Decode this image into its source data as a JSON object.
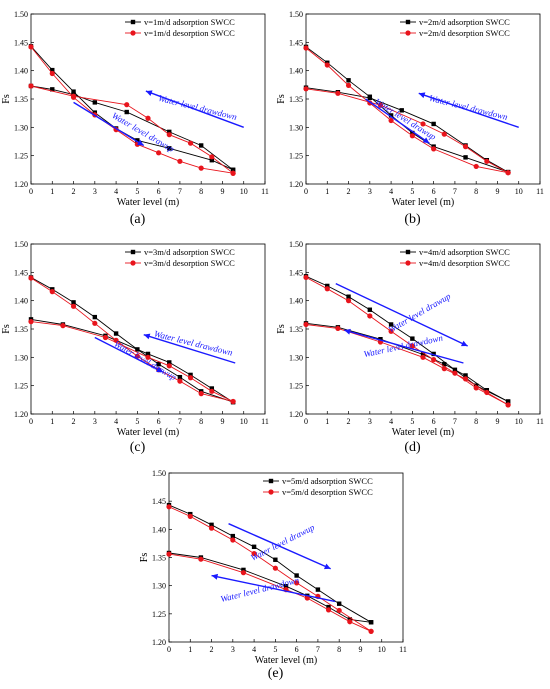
{
  "chart_data": [
    {
      "type": "line",
      "caption": "(a)",
      "xlabel": "Water level (m)",
      "ylabel": "Fs",
      "xlim": [
        0,
        11
      ],
      "ylim": [
        1.2,
        1.5
      ],
      "xticks": [
        0,
        1,
        2,
        3,
        4,
        5,
        6,
        7,
        8,
        9,
        10,
        11
      ],
      "yticks": [
        "1.20",
        "1.25",
        "1.30",
        "1.35",
        "1.40",
        "1.45",
        "1.50"
      ],
      "legend_position": "top-right",
      "colors": {
        "adsorption": "#000000",
        "desorption": "#e8141c",
        "annotation": "#1a1aff"
      },
      "series": [
        {
          "name": "v=1m/d adsorption SWCC",
          "group": "adsorption",
          "marker": "square",
          "branches": [
            {
              "x": [
                0,
                1,
                2,
                3,
                4,
                5,
                6.5,
                8.5,
                9.5
              ],
              "y": [
                1.443,
                1.401,
                1.363,
                1.326,
                1.298,
                1.277,
                1.263,
                1.242,
                1.225
              ]
            },
            {
              "x": [
                0,
                1,
                2,
                3,
                4.5,
                6.5,
                8,
                9.5
              ],
              "y": [
                1.373,
                1.367,
                1.358,
                1.344,
                1.327,
                1.292,
                1.268,
                1.225
              ]
            }
          ]
        },
        {
          "name": "v=1m/d desorption SWCC",
          "group": "desorption",
          "marker": "circle",
          "branches": [
            {
              "x": [
                0,
                1,
                2,
                3,
                4,
                5,
                6,
                7,
                8,
                9.5
              ],
              "y": [
                1.442,
                1.395,
                1.353,
                1.322,
                1.296,
                1.27,
                1.255,
                1.24,
                1.228,
                1.219
              ]
            },
            {
              "x": [
                0,
                2,
                4.5,
                5.5,
                6.5,
                7.5,
                8.5,
                9.5
              ],
              "y": [
                1.373,
                1.355,
                1.34,
                1.316,
                1.287,
                1.272,
                1.248,
                1.219
              ]
            }
          ]
        }
      ],
      "annotations": [
        {
          "text": "Water level drawdown",
          "x": 7.8,
          "y": 1.33,
          "rotate": 14,
          "arrow": {
            "x1": 10.0,
            "y1": 1.3,
            "x2": 5.4,
            "y2": 1.364
          }
        },
        {
          "text": "Water level drawup",
          "x": 5.2,
          "y": 1.287,
          "rotate": 30,
          "arrow": {
            "x1": 2.0,
            "y1": 1.344,
            "x2": 5.3,
            "y2": 1.268
          }
        }
      ]
    },
    {
      "type": "line",
      "caption": "(b)",
      "xlabel": "Water level (m)",
      "ylabel": "Fs",
      "xlim": [
        0,
        11
      ],
      "ylim": [
        1.2,
        1.5
      ],
      "xticks": [
        0,
        1,
        2,
        3,
        4,
        5,
        6,
        7,
        8,
        9,
        10,
        11
      ],
      "yticks": [
        "1.20",
        "1.25",
        "1.30",
        "1.35",
        "1.40",
        "1.45",
        "1.50"
      ],
      "legend_position": "top-right",
      "colors": {
        "adsorption": "#000000",
        "desorption": "#e8141c",
        "annotation": "#1a1aff"
      },
      "series": [
        {
          "name": "v=2m/d adsorption SWCC",
          "group": "adsorption",
          "marker": "square",
          "branches": [
            {
              "x": [
                0,
                1,
                2,
                3,
                4,
                5,
                6,
                7.5,
                9.5
              ],
              "y": [
                1.442,
                1.414,
                1.383,
                1.354,
                1.321,
                1.29,
                1.266,
                1.247,
                1.221
              ]
            },
            {
              "x": [
                0,
                1.5,
                3,
                4.5,
                6,
                7.5,
                8.5,
                9.5
              ],
              "y": [
                1.37,
                1.362,
                1.352,
                1.33,
                1.306,
                1.268,
                1.242,
                1.221
              ]
            }
          ]
        },
        {
          "name": "v=2m/d desorption SWCC",
          "group": "desorption",
          "marker": "circle",
          "branches": [
            {
              "x": [
                0,
                1,
                2,
                3,
                4,
                5,
                6,
                8,
                9.5
              ],
              "y": [
                1.44,
                1.41,
                1.374,
                1.343,
                1.312,
                1.285,
                1.262,
                1.231,
                1.22
              ]
            },
            {
              "x": [
                0,
                1.5,
                3.5,
                5.5,
                6.5,
                7.5,
                8.5,
                9.5
              ],
              "y": [
                1.368,
                1.36,
                1.339,
                1.306,
                1.288,
                1.266,
                1.24,
                1.22
              ]
            }
          ]
        }
      ],
      "annotations": [
        {
          "text": "Water level drawdown",
          "x": 7.6,
          "y": 1.33,
          "rotate": 14,
          "arrow": {
            "x1": 10.0,
            "y1": 1.3,
            "x2": 5.3,
            "y2": 1.36
          }
        },
        {
          "text": "Water level drawup",
          "x": 4.6,
          "y": 1.31,
          "rotate": 32,
          "arrow": {
            "x1": 2.8,
            "y1": 1.35,
            "x2": 5.8,
            "y2": 1.272
          }
        }
      ]
    },
    {
      "type": "line",
      "caption": "(c)",
      "xlabel": "Water level (m)",
      "ylabel": "Fs",
      "xlim": [
        0,
        11
      ],
      "ylim": [
        1.2,
        1.5
      ],
      "xticks": [
        0,
        1,
        2,
        3,
        4,
        5,
        6,
        7,
        8,
        9,
        10,
        11
      ],
      "yticks": [
        "1.20",
        "1.25",
        "1.30",
        "1.35",
        "1.40",
        "1.45",
        "1.50"
      ],
      "legend_position": "top-right",
      "colors": {
        "adsorption": "#000000",
        "desorption": "#e8141c",
        "annotation": "#1a1aff"
      },
      "series": [
        {
          "name": "v=3m/d adsorption SWCC",
          "group": "adsorption",
          "marker": "square",
          "branches": [
            {
              "x": [
                0,
                1,
                2,
                3,
                4,
                5,
                6,
                7,
                8,
                9.5
              ],
              "y": [
                1.441,
                1.42,
                1.397,
                1.371,
                1.342,
                1.314,
                1.288,
                1.265,
                1.24,
                1.221
              ]
            },
            {
              "x": [
                0,
                1.5,
                3.5,
                5.5,
                6.5,
                7.5,
                8.5,
                9.5
              ],
              "y": [
                1.367,
                1.358,
                1.338,
                1.306,
                1.291,
                1.269,
                1.245,
                1.221
              ]
            }
          ]
        },
        {
          "name": "v=3m/d desorption SWCC",
          "group": "desorption",
          "marker": "circle",
          "branches": [
            {
              "x": [
                0,
                1,
                2,
                3,
                4,
                5,
                6,
                7,
                8,
                9.5
              ],
              "y": [
                1.44,
                1.416,
                1.39,
                1.36,
                1.33,
                1.302,
                1.278,
                1.258,
                1.236,
                1.222
              ]
            },
            {
              "x": [
                0,
                1.5,
                3.5,
                5.5,
                6.5,
                7.5,
                8.5,
                9.5
              ],
              "y": [
                1.363,
                1.356,
                1.335,
                1.3,
                1.285,
                1.264,
                1.24,
                1.222
              ]
            }
          ]
        }
      ],
      "annotations": [
        {
          "text": "Water level drawdown",
          "x": 7.6,
          "y": 1.32,
          "rotate": 14,
          "arrow": {
            "x1": 9.6,
            "y1": 1.29,
            "x2": 5.3,
            "y2": 1.34
          }
        },
        {
          "text": "Water level drawup",
          "x": 5.3,
          "y": 1.29,
          "rotate": 30,
          "arrow": {
            "x1": 3.0,
            "y1": 1.335,
            "x2": 6.2,
            "y2": 1.274
          }
        }
      ]
    },
    {
      "type": "line",
      "caption": "(d)",
      "xlabel": "Water level (m)",
      "ylabel": "Fs",
      "xlim": [
        0,
        11
      ],
      "ylim": [
        1.2,
        1.5
      ],
      "xticks": [
        0,
        1,
        2,
        3,
        4,
        5,
        6,
        7,
        8,
        9,
        10,
        11
      ],
      "yticks": [
        "1.20",
        "1.25",
        "1.30",
        "1.35",
        "1.40",
        "1.45",
        "1.50"
      ],
      "legend_position": "top-right",
      "colors": {
        "adsorption": "#000000",
        "desorption": "#e8141c",
        "annotation": "#1a1aff"
      },
      "series": [
        {
          "name": "v=4m/d adsorption SWCC",
          "group": "adsorption",
          "marker": "square",
          "branches": [
            {
              "x": [
                0,
                1,
                2,
                3,
                4,
                5,
                6,
                7,
                8,
                9.5
              ],
              "y": [
                1.443,
                1.426,
                1.407,
                1.384,
                1.358,
                1.333,
                1.306,
                1.278,
                1.25,
                1.222
              ]
            },
            {
              "x": [
                0,
                1.5,
                3.5,
                5.5,
                6.5,
                7.5,
                8.5,
                9.5
              ],
              "y": [
                1.36,
                1.353,
                1.332,
                1.305,
                1.288,
                1.268,
                1.242,
                1.222
              ]
            }
          ]
        },
        {
          "name": "v=4m/d desorption SWCC",
          "group": "desorption",
          "marker": "circle",
          "branches": [
            {
              "x": [
                0,
                1,
                2,
                3,
                4,
                5,
                6,
                7,
                8,
                9.5
              ],
              "y": [
                1.441,
                1.421,
                1.4,
                1.373,
                1.346,
                1.32,
                1.296,
                1.272,
                1.246,
                1.216
              ]
            },
            {
              "x": [
                0,
                1.5,
                3.5,
                5.5,
                6.5,
                7.5,
                8.5,
                9.5
              ],
              "y": [
                1.358,
                1.351,
                1.327,
                1.3,
                1.28,
                1.262,
                1.238,
                1.216
              ]
            }
          ]
        }
      ],
      "annotations": [
        {
          "text": "Water level drawup",
          "x": 5.4,
          "y": 1.374,
          "rotate": -30,
          "arrow": {
            "x1": 1.4,
            "y1": 1.43,
            "x2": 7.6,
            "y2": 1.32
          }
        },
        {
          "text": "Water level drawdown",
          "x": 4.6,
          "y": 1.315,
          "rotate": -12,
          "arrow": {
            "x1": 7.4,
            "y1": 1.29,
            "x2": 1.8,
            "y2": 1.348
          }
        }
      ]
    },
    {
      "type": "line",
      "caption": "(e)",
      "xlabel": "Water level (m)",
      "ylabel": "Fs",
      "xlim": [
        0,
        11
      ],
      "ylim": [
        1.2,
        1.5
      ],
      "xticks": [
        0,
        1,
        2,
        3,
        4,
        5,
        6,
        7,
        8,
        9,
        10,
        11
      ],
      "yticks": [
        "1.20",
        "1.25",
        "1.30",
        "1.35",
        "1.40",
        "1.45",
        "1.50"
      ],
      "legend_position": "top-right",
      "colors": {
        "adsorption": "#000000",
        "desorption": "#e8141c",
        "annotation": "#1a1aff"
      },
      "series": [
        {
          "name": "v=5m/d adsorption SWCC",
          "group": "adsorption",
          "marker": "square",
          "branches": [
            {
              "x": [
                0,
                1,
                2,
                3,
                4,
                5,
                6,
                7,
                8,
                9.5
              ],
              "y": [
                1.443,
                1.427,
                1.408,
                1.388,
                1.369,
                1.346,
                1.318,
                1.293,
                1.268,
                1.235
              ]
            },
            {
              "x": [
                0,
                1.5,
                3.5,
                5.5,
                6.5,
                7.5,
                8.5,
                9.5
              ],
              "y": [
                1.358,
                1.35,
                1.328,
                1.299,
                1.282,
                1.262,
                1.24,
                1.235
              ]
            }
          ]
        },
        {
          "name": "v=5m/d desorption SWCC",
          "group": "desorption",
          "marker": "circle",
          "branches": [
            {
              "x": [
                0,
                1,
                2,
                3,
                4,
                5,
                6,
                7,
                8,
                9.5
              ],
              "y": [
                1.44,
                1.423,
                1.402,
                1.381,
                1.357,
                1.331,
                1.305,
                1.281,
                1.256,
                1.219
              ]
            },
            {
              "x": [
                0,
                1.5,
                3.5,
                5.5,
                6.5,
                7.5,
                8.5,
                9.5
              ],
              "y": [
                1.356,
                1.347,
                1.323,
                1.293,
                1.278,
                1.257,
                1.236,
                1.219
              ]
            }
          ]
        }
      ],
      "annotations": [
        {
          "text": "Water level drawup",
          "x": 5.4,
          "y": 1.372,
          "rotate": -27,
          "arrow": {
            "x1": 2.8,
            "y1": 1.41,
            "x2": 7.6,
            "y2": 1.33
          }
        },
        {
          "text": "Water level drawdown",
          "x": 4.3,
          "y": 1.288,
          "rotate": -14,
          "arrow": {
            "x1": 7.8,
            "y1": 1.272,
            "x2": 2.0,
            "y2": 1.318
          }
        }
      ]
    }
  ]
}
